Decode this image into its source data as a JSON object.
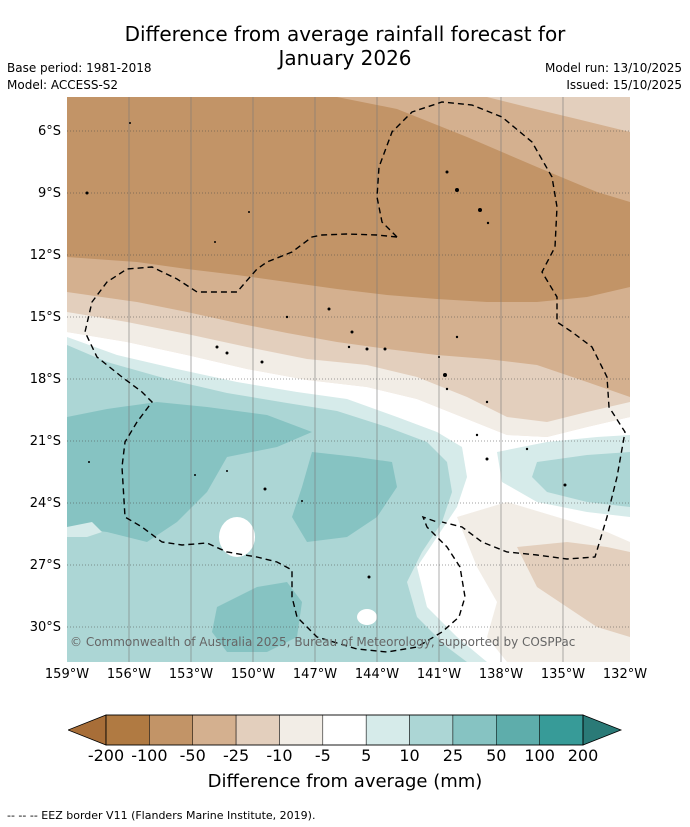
{
  "header": {
    "title_line1": "Difference from average rainfall forecast for",
    "title_line2": "January 2026",
    "base_period": "Base period: 1981-2018",
    "model": "Model: ACCESS-S2",
    "model_run": "Model run: 13/10/2025",
    "issued": "Issued: 15/10/2025"
  },
  "map": {
    "lat_labels": [
      "6°S",
      "9°S",
      "12°S",
      "15°S",
      "18°S",
      "21°S",
      "24°S",
      "27°S",
      "30°S"
    ],
    "lon_labels": [
      "159°W",
      "156°W",
      "153°W",
      "150°W",
      "147°W",
      "144°W",
      "141°W",
      "138°W",
      "135°W",
      "132°W"
    ],
    "copyright": "© Commonwealth of Australia 2025, Bureau of Meteorology, supported by COSPPac"
  },
  "colorbar": {
    "ticks": [
      "-200",
      "-100",
      "-50",
      "-25",
      "-10",
      "-5",
      "5",
      "10",
      "25",
      "50",
      "100",
      "200"
    ],
    "colors": [
      "#a86e38",
      "#b07a42",
      "#c29467",
      "#d4b08f",
      "#e3cfbd",
      "#f2ede6",
      "#ffffff",
      "#d6ebea",
      "#acd6d5",
      "#86c3c2",
      "#5eadab",
      "#379b98",
      "#2a7a77"
    ],
    "label": "Difference from average (mm)"
  },
  "footer": {
    "legend_text": "--  --  -- EEZ border V11 (Flanders Marine Institute, 2019)."
  }
}
